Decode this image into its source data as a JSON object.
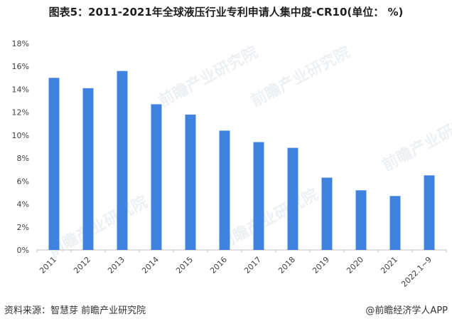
{
  "title": "图表5：2011-2021年全球液压行业专利申请人集中度-CR10(单位： %)",
  "watermark": "前瞻产业研究院",
  "source": "资料来源：智慧芽 前瞻产业研究院",
  "app_credit": "@前瞻经济学人APP",
  "colors": {
    "bar": "#3f82e0",
    "axis": "#bfbfbf",
    "text": "#404040"
  },
  "chart_data": {
    "type": "bar",
    "title": "图表5：2011-2021年全球液压行业专利申请人集中度-CR10(单位： %)",
    "categories": [
      "2011",
      "2012",
      "2013",
      "2014",
      "2015",
      "2016",
      "2017",
      "2018",
      "2019",
      "2020",
      "2021",
      "2022.1~9"
    ],
    "values": [
      15.0,
      14.1,
      15.6,
      12.7,
      11.8,
      10.4,
      9.4,
      8.9,
      6.3,
      5.2,
      4.7,
      6.5
    ],
    "yticks": [
      "0%",
      "2%",
      "4%",
      "6%",
      "8%",
      "10%",
      "12%",
      "14%",
      "16%",
      "18%"
    ],
    "ylim": [
      0,
      18
    ],
    "unit": "%",
    "grid": false,
    "legend": "none"
  }
}
